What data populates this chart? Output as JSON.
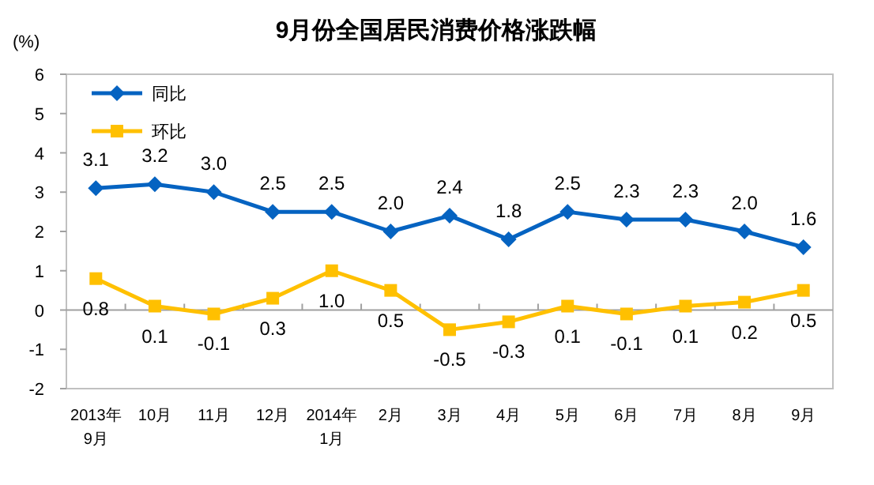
{
  "chart_data": {
    "type": "line",
    "title": "9月份全国居民消费价格涨跌幅",
    "ylabel": "(%)",
    "categories": [
      "2013年\n9月",
      "10月",
      "11月",
      "12月",
      "2014年\n1月",
      "2月",
      "3月",
      "4月",
      "5月",
      "6月",
      "7月",
      "8月",
      "9月"
    ],
    "series": [
      {
        "name": "同比",
        "color": "#0563c1",
        "marker": "diamond",
        "values": [
          3.1,
          3.2,
          3.0,
          2.5,
          2.5,
          2.0,
          2.4,
          1.8,
          2.5,
          2.3,
          2.3,
          2.0,
          1.6
        ],
        "value_labels": [
          "3.1",
          "3.2",
          "3.0",
          "2.5",
          "2.5",
          "2.0",
          "2.4",
          "1.8",
          "2.5",
          "2.3",
          "2.3",
          "2.0",
          "1.6"
        ]
      },
      {
        "name": "环比",
        "color": "#ffc000",
        "marker": "square",
        "values": [
          0.8,
          0.1,
          -0.1,
          0.3,
          1.0,
          0.5,
          -0.5,
          -0.3,
          0.1,
          -0.1,
          0.1,
          0.2,
          0.5
        ],
        "value_labels": [
          "0.8",
          "0.1",
          "-0.1",
          "0.3",
          "1.0",
          "0.5",
          "-0.5",
          "-0.3",
          "0.1",
          "-0.1",
          "0.1",
          "0.2",
          "0.5"
        ]
      }
    ],
    "ylim": [
      -2,
      6
    ],
    "yticks": [
      -2,
      -1,
      0,
      1,
      2,
      3,
      4,
      5,
      6
    ],
    "legend": "top left"
  }
}
